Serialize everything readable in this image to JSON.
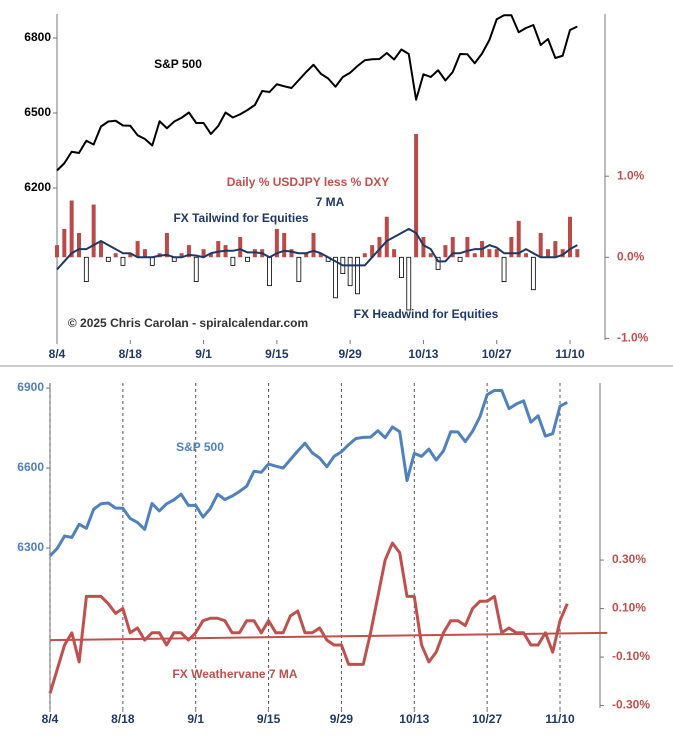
{
  "chart_data": [
    {
      "type": "line",
      "categories": [
        "8/4",
        null,
        null,
        null,
        null,
        null,
        null,
        null,
        null,
        null,
        "8/18",
        null,
        null,
        null,
        null,
        null,
        null,
        null,
        null,
        null,
        "9/1",
        null,
        null,
        null,
        null,
        null,
        null,
        null,
        null,
        null,
        "9/15",
        null,
        null,
        null,
        null,
        null,
        null,
        null,
        null,
        null,
        "9/29",
        null,
        null,
        null,
        null,
        null,
        null,
        null,
        null,
        null,
        "10/13",
        null,
        null,
        null,
        null,
        null,
        null,
        null,
        null,
        null,
        "10/27",
        null,
        null,
        null,
        null,
        null,
        null,
        null,
        null,
        null,
        "11/10",
        null
      ],
      "ylim": [
        5592,
        6896
      ],
      "yticks": [
        6200,
        6500,
        6800
      ],
      "y2lim": [
        -1.02,
        3.0
      ],
      "y2ticks": [
        {
          "value": -1,
          "label": "-1.0%"
        },
        {
          "value": 0,
          "label": "0.0%"
        },
        {
          "value": 1,
          "label": "1.0%"
        }
      ],
      "series": [
        {
          "type": "line",
          "color": "#000000",
          "values": [
            6270,
            6299,
            6345,
            6340,
            6389,
            6374,
            6446,
            6466,
            6469,
            6450,
            6449,
            6411,
            6396,
            6370,
            6467,
            6439,
            6466,
            6481,
            6502,
            6460,
            6460,
            6416,
            6448,
            6502,
            6482,
            6495,
            6512,
            6532,
            6588,
            6584,
            6615,
            6607,
            6600,
            6632,
            6664,
            6693,
            6657,
            6638,
            6605,
            6644,
            6661,
            6688,
            6711,
            6715,
            6716,
            6740,
            6714,
            6754,
            6736,
            6553,
            6655,
            6644,
            6671,
            6630,
            6664,
            6736,
            6735,
            6699,
            6738,
            6792,
            6875,
            6891,
            6891,
            6823,
            6840,
            6852,
            6772,
            6796,
            6720,
            6729,
            6832,
            6846
          ]
        },
        {
          "type": "bar",
          "axis": "y2",
          "color": "#b94a48",
          "negative_fill": "#ffffff",
          "values": [
            0.15,
            0.35,
            0.7,
            0.3,
            -0.3,
            0.65,
            0.2,
            -0.05,
            0.05,
            -0.1,
            0.05,
            0.2,
            0.1,
            -0.1,
            0.05,
            0.3,
            -0.05,
            0.05,
            0.15,
            -0.3,
            0.1,
            0.05,
            0.2,
            0.15,
            -0.1,
            0.25,
            -0.05,
            0.1,
            0.1,
            -0.35,
            0.35,
            0.3,
            0.1,
            -0.3,
            0.05,
            0.3,
            0.05,
            -0.05,
            -0.5,
            -0.2,
            -0.35,
            -0.45,
            0.05,
            0.15,
            0.25,
            0.5,
            0.1,
            -0.25,
            -0.65,
            1.52,
            0.25,
            0.05,
            -0.15,
            0.15,
            0.25,
            -0.05,
            0.25,
            0.05,
            0.2,
            0.1,
            0.1,
            -0.3,
            0.25,
            0.45,
            0.05,
            -0.4,
            0.3,
            0.1,
            0.2,
            0.1,
            0.5,
            0.1
          ]
        },
        {
          "type": "line",
          "axis": "y2",
          "color": "#1f3864",
          "values": [
            -0.15,
            -0.05,
            0.05,
            0.1,
            0.1,
            0.15,
            0.2,
            0.15,
            0.1,
            0.05,
            0.05,
            0.0,
            0.0,
            0.0,
            0.02,
            0.03,
            0.0,
            0.0,
            0.03,
            0.02,
            0.0,
            0.05,
            0.07,
            0.08,
            0.08,
            0.1,
            0.06,
            0.06,
            0.05,
            0.0,
            0.05,
            0.08,
            0.07,
            0.05,
            0.05,
            0.08,
            0.05,
            0.0,
            -0.05,
            -0.1,
            -0.1,
            -0.1,
            -0.1,
            0.0,
            0.1,
            0.2,
            0.25,
            0.3,
            0.35,
            0.3,
            0.15,
            0.1,
            -0.05,
            -0.05,
            0.05,
            0.05,
            0.08,
            0.1,
            0.1,
            0.15,
            0.12,
            0.05,
            0.05,
            0.05,
            0.1,
            0.05,
            0.0,
            0.0,
            0.0,
            0.03,
            0.1,
            0.15
          ]
        }
      ],
      "annotations": [
        "S&P 500",
        "Daily % USDJPY less % DXY",
        "7 MA",
        "FX Tailwind for Equities",
        "FX Headwind for Equities",
        "© 2025 Chris Carolan - spiralcalendar.com"
      ],
      "xgrid": false
    },
    {
      "type": "line",
      "categories": [
        "8/4",
        null,
        null,
        null,
        null,
        null,
        null,
        null,
        null,
        null,
        "8/18",
        null,
        null,
        null,
        null,
        null,
        null,
        null,
        null,
        null,
        "9/1",
        null,
        null,
        null,
        null,
        null,
        null,
        null,
        null,
        null,
        "9/15",
        null,
        null,
        null,
        null,
        null,
        null,
        null,
        null,
        null,
        "9/29",
        null,
        null,
        null,
        null,
        null,
        null,
        null,
        null,
        null,
        "10/13",
        null,
        null,
        null,
        null,
        null,
        null,
        null,
        null,
        null,
        "10/27",
        null,
        null,
        null,
        null,
        null,
        null,
        null,
        null,
        null,
        "11/10",
        null
      ],
      "ylim": [
        5700,
        6919
      ],
      "yticks": [
        6300,
        6600,
        6900
      ],
      "y2lim": [
        -0.31,
        1.03
      ],
      "y2ticks": [
        {
          "value": -0.3,
          "label": "-0.30%"
        },
        {
          "value": -0.1,
          "label": "-0.10%"
        },
        {
          "value": 0.1,
          "label": "0.10%"
        },
        {
          "value": 0.3,
          "label": "0.30%"
        }
      ],
      "series": [
        {
          "type": "line",
          "color": "#4f81bd",
          "values": [
            6270,
            6299,
            6345,
            6340,
            6389,
            6374,
            6446,
            6466,
            6469,
            6450,
            6449,
            6411,
            6396,
            6370,
            6467,
            6439,
            6466,
            6481,
            6502,
            6460,
            6460,
            6416,
            6448,
            6502,
            6482,
            6495,
            6512,
            6532,
            6588,
            6584,
            6615,
            6607,
            6600,
            6632,
            6664,
            6693,
            6657,
            6638,
            6605,
            6644,
            6661,
            6688,
            6711,
            6715,
            6716,
            6740,
            6714,
            6754,
            6736,
            6553,
            6655,
            6644,
            6671,
            6630,
            6664,
            6736,
            6735,
            6699,
            6738,
            6792,
            6875,
            6891,
            6891,
            6823,
            6840,
            6852,
            6772,
            6796,
            6720,
            6729,
            6832,
            6846
          ]
        },
        {
          "type": "line",
          "axis": "y2",
          "color": "#c0504d",
          "values": [
            -0.25,
            -0.15,
            -0.05,
            0.0,
            -0.12,
            0.15,
            0.15,
            0.15,
            0.12,
            0.08,
            0.1,
            0.0,
            0.02,
            -0.03,
            0.0,
            0.0,
            -0.05,
            0.0,
            0.0,
            -0.03,
            0.0,
            0.05,
            0.06,
            0.06,
            0.05,
            0.0,
            0.0,
            0.05,
            0.05,
            0.0,
            0.05,
            0.0,
            0.0,
            0.07,
            0.09,
            0.0,
            0.0,
            0.02,
            -0.03,
            -0.05,
            -0.05,
            -0.13,
            -0.13,
            -0.13,
            0.0,
            0.15,
            0.3,
            0.37,
            0.33,
            0.15,
            0.15,
            -0.05,
            -0.12,
            -0.08,
            0.0,
            0.05,
            0.05,
            0.03,
            0.1,
            0.13,
            0.13,
            0.15,
            0.0,
            0.02,
            0.0,
            0.0,
            -0.05,
            -0.05,
            0.0,
            -0.08,
            0.05,
            0.12
          ]
        }
      ],
      "trend": {
        "axis": "y2",
        "color": "#c0504d",
        "start": -0.03,
        "end": 0.0
      },
      "annotations": [
        "S&P 500",
        "FX Weathervane 7 MA"
      ],
      "xgrid": true
    }
  ]
}
